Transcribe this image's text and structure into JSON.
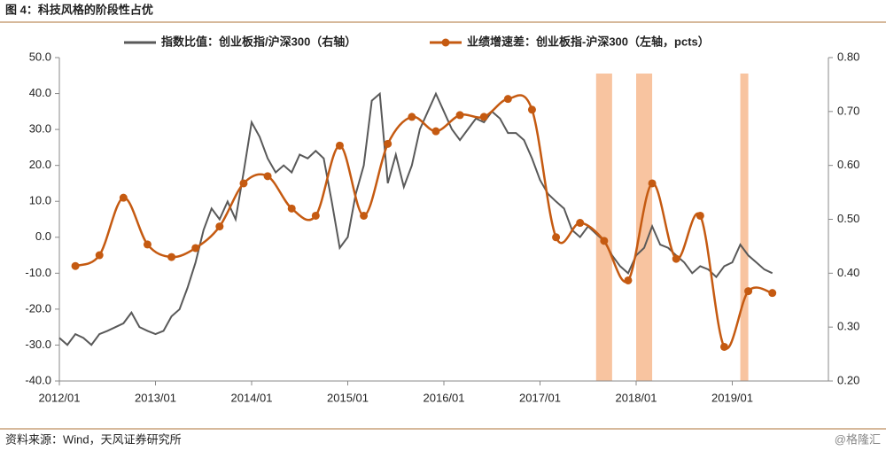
{
  "header": {
    "title": "图 4：科技风格的阶段性占优"
  },
  "footer": {
    "source": "资料来源：Wind，天风证券研究所",
    "watermark": "@格隆汇"
  },
  "chart_data": {
    "type": "line",
    "xlim": [
      "2012/01",
      "2020/01"
    ],
    "xticks": [
      "2012/01",
      "2013/01",
      "2014/01",
      "2015/01",
      "2016/01",
      "2017/01",
      "2018/01",
      "2019/01"
    ],
    "ylim": [
      -40,
      50
    ],
    "yticks": [
      {
        "value": -40,
        "label": "-40.0"
      },
      {
        "value": -30,
        "label": "-30.0"
      },
      {
        "value": -20,
        "label": "-20.0"
      },
      {
        "value": -10,
        "label": "-10.0"
      },
      {
        "value": 0,
        "label": "0.0"
      },
      {
        "value": 10,
        "label": "10.0"
      },
      {
        "value": 20,
        "label": "20.0"
      },
      {
        "value": 30,
        "label": "30.0"
      },
      {
        "value": 40,
        "label": "40.0"
      },
      {
        "value": 50,
        "label": "50.0"
      }
    ],
    "y2lim": [
      0.2,
      0.8
    ],
    "y2ticks": [
      {
        "value": 0.2,
        "label": "0.20"
      },
      {
        "value": 0.3,
        "label": "0.30"
      },
      {
        "value": 0.4,
        "label": "0.40"
      },
      {
        "value": 0.5,
        "label": "0.50"
      },
      {
        "value": 0.6,
        "label": "0.60"
      },
      {
        "value": 0.7,
        "label": "0.70"
      },
      {
        "value": 0.8,
        "label": "0.80"
      }
    ],
    "highlight_periods": [
      [
        "2017/08",
        "2017/10"
      ],
      [
        "2018/01",
        "2018/03"
      ],
      [
        "2019/02",
        "2019/03"
      ]
    ],
    "highlight_color": "#f8c4a0",
    "series": [
      {
        "name": "指数比值：创业板指/沪深300（右轴）",
        "color": "#595959",
        "axis": "y2",
        "markers": false,
        "x": [
          "2012/01",
          "2012/02",
          "2012/03",
          "2012/04",
          "2012/05",
          "2012/06",
          "2012/07",
          "2012/08",
          "2012/09",
          "2012/10",
          "2012/11",
          "2012/12",
          "2013/01",
          "2013/02",
          "2013/03",
          "2013/04",
          "2013/05",
          "2013/06",
          "2013/07",
          "2013/08",
          "2013/09",
          "2013/10",
          "2013/11",
          "2013/12",
          "2014/01",
          "2014/02",
          "2014/03",
          "2014/04",
          "2014/05",
          "2014/06",
          "2014/07",
          "2014/08",
          "2014/09",
          "2014/10",
          "2014/11",
          "2014/12",
          "2015/01",
          "2015/02",
          "2015/03",
          "2015/04",
          "2015/05",
          "2015/06",
          "2015/07",
          "2015/08",
          "2015/09",
          "2015/10",
          "2015/11",
          "2015/12",
          "2016/01",
          "2016/02",
          "2016/03",
          "2016/04",
          "2016/05",
          "2016/06",
          "2016/07",
          "2016/08",
          "2016/09",
          "2016/10",
          "2016/11",
          "2016/12",
          "2017/01",
          "2017/02",
          "2017/03",
          "2017/04",
          "2017/05",
          "2017/06",
          "2017/07",
          "2017/08",
          "2017/09",
          "2017/10",
          "2017/11",
          "2017/12",
          "2018/01",
          "2018/02",
          "2018/03",
          "2018/04",
          "2018/05",
          "2018/06",
          "2018/07",
          "2018/08",
          "2018/09",
          "2018/10",
          "2018/11",
          "2018/12",
          "2019/01",
          "2019/02",
          "2019/03",
          "2019/04",
          "2019/05",
          "2019/06"
        ],
        "values": [
          0.28,
          0.267,
          0.287,
          0.28,
          0.267,
          0.287,
          0.293,
          0.3,
          0.307,
          0.327,
          0.3,
          0.293,
          0.287,
          0.293,
          0.32,
          0.333,
          0.373,
          0.42,
          0.48,
          0.52,
          0.5,
          0.533,
          0.5,
          0.587,
          0.68,
          0.653,
          0.613,
          0.587,
          0.6,
          0.587,
          0.62,
          0.613,
          0.627,
          0.613,
          0.533,
          0.447,
          0.467,
          0.547,
          0.6,
          0.72,
          0.733,
          0.567,
          0.62,
          0.56,
          0.6,
          0.667,
          0.7,
          0.733,
          0.7,
          0.667,
          0.647,
          0.667,
          0.687,
          0.68,
          0.7,
          0.687,
          0.66,
          0.66,
          0.647,
          0.613,
          0.573,
          0.547,
          0.533,
          0.52,
          0.48,
          0.467,
          0.487,
          0.473,
          0.46,
          0.433,
          0.413,
          0.4,
          0.433,
          0.447,
          0.487,
          0.453,
          0.447,
          0.433,
          0.42,
          0.4,
          0.413,
          0.407,
          0.393,
          0.413,
          0.42,
          0.453,
          0.433,
          0.42,
          0.407,
          0.4
        ]
      },
      {
        "name": "业绩增速差：创业板指-沪深300（左轴，pcts）",
        "color": "#c55a11",
        "axis": "y",
        "markers": true,
        "x": [
          "2012/03",
          "2012/06",
          "2012/09",
          "2012/12",
          "2013/03",
          "2013/06",
          "2013/09",
          "2013/12",
          "2014/03",
          "2014/06",
          "2014/09",
          "2014/12",
          "2015/03",
          "2015/06",
          "2015/09",
          "2015/12",
          "2016/03",
          "2016/06",
          "2016/09",
          "2016/12",
          "2017/03",
          "2017/06",
          "2017/09",
          "2017/12",
          "2018/03",
          "2018/06",
          "2018/09",
          "2018/12",
          "2019/03",
          "2019/06"
        ],
        "values": [
          -8,
          -5,
          11,
          -2,
          -5.5,
          -3,
          3,
          15,
          17,
          8,
          6,
          25.5,
          6,
          26,
          33.5,
          29.5,
          34,
          33.5,
          38.5,
          35.5,
          0,
          4,
          -1,
          -12,
          15,
          -6,
          6,
          -30.5,
          -15,
          -15.5
        ]
      }
    ]
  }
}
